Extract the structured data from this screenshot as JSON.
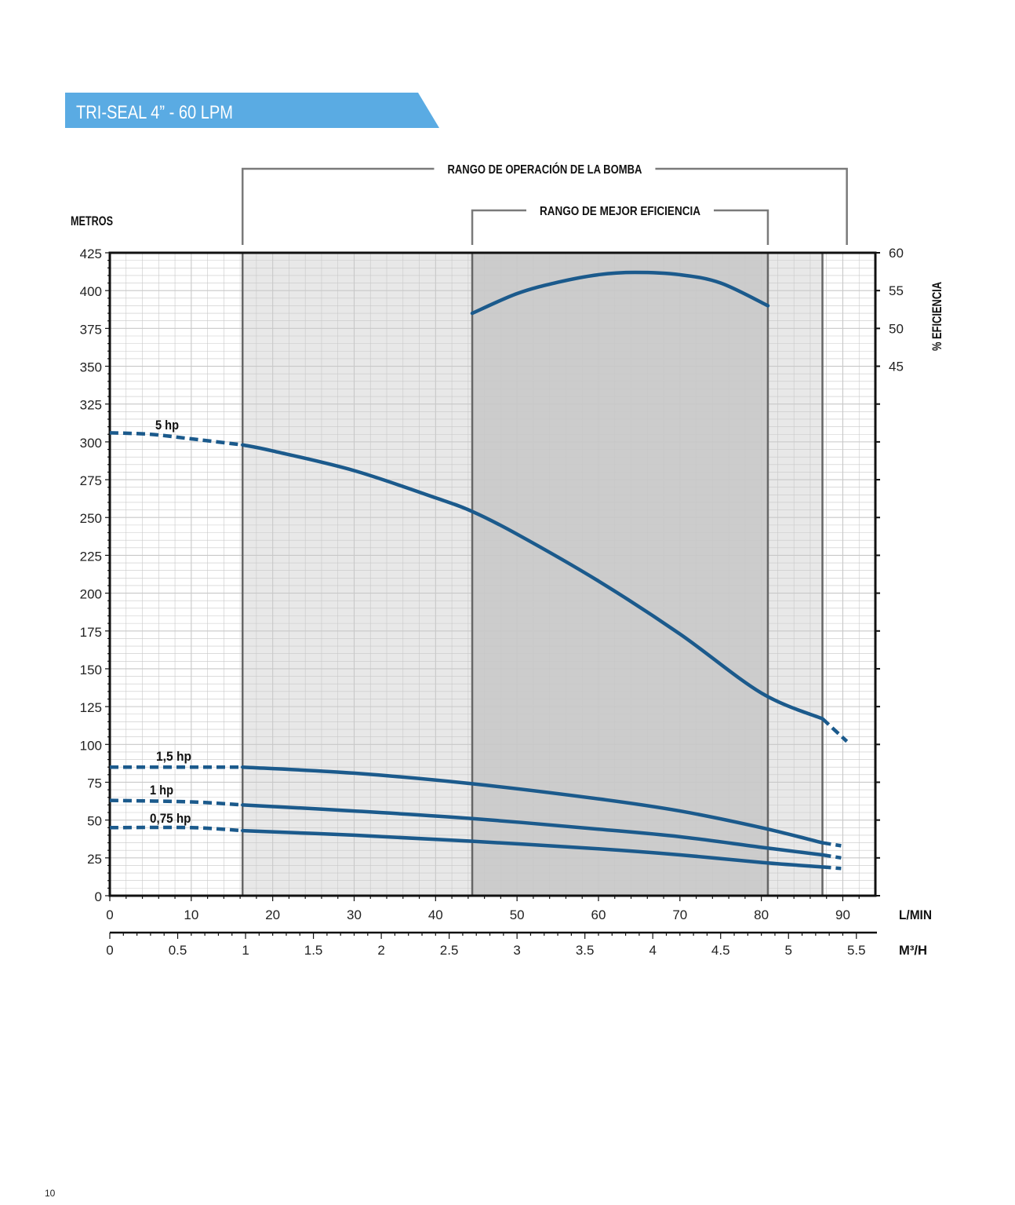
{
  "page": {
    "title": "TRI-SEAL 4” - 60 LPM",
    "page_number": "10",
    "banner_color": "#5aabe3"
  },
  "chart_data": {
    "type": "line",
    "ylabel": "METROS",
    "y2label": "% EFICIENCIA",
    "xlabel": "L/MIN",
    "x2label": "M³/H",
    "ylim": [
      0,
      425
    ],
    "xlim": [
      0,
      94
    ],
    "y2lim": [
      45,
      60
    ],
    "grid": true,
    "y_ticks": [
      0,
      25,
      50,
      75,
      100,
      125,
      150,
      175,
      200,
      225,
      250,
      275,
      300,
      325,
      350,
      375,
      400,
      425
    ],
    "x_ticks": [
      0,
      10,
      20,
      30,
      40,
      50,
      60,
      70,
      80,
      90
    ],
    "x2_ticks": [
      {
        "label": "0",
        "lpm": 0
      },
      {
        "label": "0.5",
        "lpm": 8.333
      },
      {
        "label": "1",
        "lpm": 16.667
      },
      {
        "label": "1.5",
        "lpm": 25
      },
      {
        "label": "2",
        "lpm": 33.333
      },
      {
        "label": "2.5",
        "lpm": 41.667
      },
      {
        "label": "3",
        "lpm": 50
      },
      {
        "label": "3.5",
        "lpm": 58.333
      },
      {
        "label": "4",
        "lpm": 66.667
      },
      {
        "label": "4.5",
        "lpm": 75
      },
      {
        "label": "5",
        "lpm": 83.333
      },
      {
        "label": "5.5",
        "lpm": 91.667
      }
    ],
    "y2_ticks": [
      60,
      55,
      50,
      45
    ],
    "ranges": {
      "operation": {
        "label": "RANGO DE OPERACIÓN DE LA BOMBA",
        "x_start": 16.3,
        "x_end": 90.5
      },
      "best_efficiency": {
        "label": "RANGO DE MEJOR EFICIENCIA",
        "x_start": 44.5,
        "x_end": 80.8
      },
      "plateau_end": 87.5
    },
    "colors": {
      "curve": "#1b5a8c",
      "operation_band": "#e8e8e8",
      "efficiency_band": "#cccccc",
      "grid": "#c8c8c8",
      "range_line": "#7a7a7a"
    },
    "series": [
      {
        "name": "5 hp",
        "solid": [
          [
            16.3,
            298
          ],
          [
            20,
            294
          ],
          [
            30,
            281
          ],
          [
            40,
            263
          ],
          [
            44.5,
            254
          ],
          [
            50,
            239
          ],
          [
            60,
            208
          ],
          [
            70,
            173
          ],
          [
            80,
            134
          ],
          [
            87.5,
            117
          ]
        ],
        "dashed_left": [
          [
            0,
            306
          ],
          [
            5,
            305
          ],
          [
            10,
            302
          ],
          [
            16.3,
            298
          ]
        ],
        "dashed_right": [
          [
            87.5,
            117
          ],
          [
            90.5,
            102
          ]
        ]
      },
      {
        "name": "1,5 hp",
        "solid": [
          [
            16.3,
            85
          ],
          [
            30,
            81
          ],
          [
            44.5,
            74
          ],
          [
            60,
            64
          ],
          [
            70,
            56
          ],
          [
            80,
            45
          ],
          [
            87.5,
            35
          ]
        ],
        "dashed_left": [
          [
            0,
            85
          ],
          [
            16.3,
            85
          ]
        ],
        "dashed_right": [
          [
            87.5,
            35
          ],
          [
            89.8,
            33
          ]
        ]
      },
      {
        "name": "1 hp",
        "solid": [
          [
            16.3,
            60
          ],
          [
            30,
            56
          ],
          [
            44.5,
            51
          ],
          [
            60,
            44
          ],
          [
            70,
            39
          ],
          [
            80,
            32
          ],
          [
            87.5,
            27
          ]
        ],
        "dashed_left": [
          [
            0,
            63
          ],
          [
            10,
            62
          ],
          [
            16.3,
            60
          ]
        ],
        "dashed_right": [
          [
            87.5,
            27
          ],
          [
            89.8,
            25
          ]
        ]
      },
      {
        "name": "0,75 hp",
        "solid": [
          [
            16.3,
            43
          ],
          [
            30,
            40
          ],
          [
            44.5,
            36
          ],
          [
            60,
            31
          ],
          [
            70,
            27
          ],
          [
            80,
            22
          ],
          [
            87.5,
            19
          ]
        ],
        "dashed_left": [
          [
            0,
            45
          ],
          [
            10,
            45
          ],
          [
            16.3,
            43
          ]
        ],
        "dashed_right": [
          [
            87.5,
            19
          ],
          [
            89.8,
            18
          ]
        ]
      },
      {
        "name": "efficiency",
        "axis": "y2",
        "solid": [
          [
            44.5,
            52
          ],
          [
            50,
            54.6
          ],
          [
            55,
            56.1
          ],
          [
            60,
            57.1
          ],
          [
            64.5,
            57.4
          ],
          [
            70,
            57.1
          ],
          [
            75,
            56.0
          ],
          [
            80.8,
            53.0
          ]
        ]
      }
    ]
  }
}
